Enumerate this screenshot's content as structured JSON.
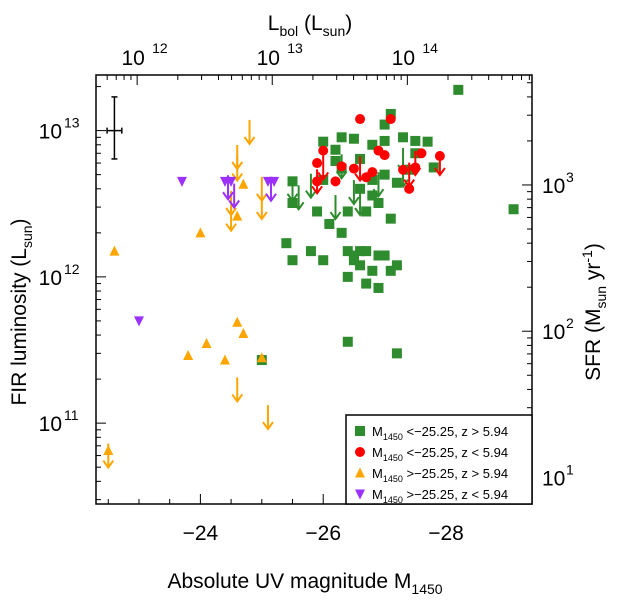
{
  "chart_data": {
    "type": "scatter",
    "xlabel": "Absolute UV magnitude M",
    "xlabel_sub": "1450",
    "ylabel": "FIR luminosity (L",
    "ylabel_sub": "sun",
    "ylabel_end": ")",
    "top_axis_label": "L",
    "top_axis_label_sub": "bol",
    "top_axis_label_mid": " (L",
    "top_axis_label_sub2": "sun",
    "top_axis_label_end": ")",
    "right_axis_label": "SFR (M",
    "right_axis_label_sub": "sun",
    "right_axis_label_mid": " yr",
    "right_axis_label_sup": "-1",
    "right_axis_label_end": ")",
    "xlim": [
      -22.3,
      -29.4
    ],
    "ylim": [
      28000000000.0,
      24000000000000.0
    ],
    "y_scale": "log",
    "x_ticks": [
      -24,
      -26,
      -28
    ],
    "x_tick_labels": [
      "−24",
      "−26",
      "−28"
    ],
    "y_ticks": [
      100000000000.0,
      1000000000000.0,
      10000000000000.0
    ],
    "y_tick_base": "10",
    "y_tick_exps": [
      "11",
      "12",
      "13"
    ],
    "top_ticks_lbol": [
      1000000000000.0,
      10000000000000.0,
      100000000000000.0
    ],
    "top_tick_base": "10",
    "top_tick_exps": [
      "12",
      "13",
      "14"
    ],
    "right_ticks_sfr": [
      10,
      100,
      1000
    ],
    "right_tick_base": "10",
    "right_tick_exps": [
      "1",
      "2",
      "3"
    ],
    "legend_placement": "bottom-right",
    "error_bar": {
      "x": -22.6,
      "y": 10000000000000.0,
      "x_err": 0.12,
      "y_low": 6400000000000.0,
      "y_high": 17000000000000.0
    },
    "series": [
      {
        "name": "M1450 <−25.25, z > 5.94",
        "label_pre": "M",
        "label_sub": "1450",
        "label_post": " <−25.25, z > 5.94",
        "marker": "square",
        "color": "#2e8b2e",
        "detections": [
          [
            -26.4,
            1500000000000.0
          ],
          [
            -25.9,
            2800000000000.0
          ],
          [
            -25.8,
            1500000000000.0
          ],
          [
            -26.0,
            1300000000000.0
          ],
          [
            -25.4,
            1700000000000.0
          ],
          [
            -25.5,
            1300000000000.0
          ],
          [
            -26.1,
            2300000000000.0
          ],
          [
            -26.3,
            2000000000000.0
          ],
          [
            -26.6,
            1500000000000.0
          ],
          [
            -26.5,
            1400000000000.0
          ],
          [
            -26.7,
            1500000000000.0
          ],
          [
            -26.8,
            1100000000000.0
          ],
          [
            -26.5,
            1300000000000.0
          ],
          [
            -26.9,
            1400000000000.0
          ],
          [
            -27.1,
            1100000000000.0
          ],
          [
            -26.6,
            1200000000000.0
          ],
          [
            -26.4,
            1000000000000.0
          ],
          [
            -26.7,
            900000000000.0
          ],
          [
            -26.9,
            840000000000.0
          ],
          [
            -27.0,
            1400000000000.0
          ],
          [
            -27.2,
            1200000000000.0
          ],
          [
            -27.1,
            2500000000000.0
          ],
          [
            -26.4,
            2800000000000.0
          ],
          [
            -26.6,
            4000000000000.0
          ],
          [
            -26.8,
            3600000000000.0
          ],
          [
            -26.9,
            3200000000000.0
          ],
          [
            -27.2,
            4400000000000.0
          ],
          [
            -27.4,
            5400000000000.0
          ],
          [
            -27.5,
            7000000000000.0
          ],
          [
            -26.8,
            4600000000000.0
          ],
          [
            -27.0,
            5000000000000.0
          ],
          [
            -26.6,
            6400000000000.0
          ],
          [
            -26.2,
            7400000000000.0
          ],
          [
            -26.0,
            8400000000000.0
          ],
          [
            -26.3,
            9000000000000.0
          ],
          [
            -26.5,
            8800000000000.0
          ],
          [
            -27.0,
            11000000000000.0
          ],
          [
            -27.1,
            13000000000000.0
          ],
          [
            -27.3,
            9000000000000.0
          ],
          [
            -27.5,
            8500000000000.0
          ],
          [
            -27.7,
            8400000000000.0
          ],
          [
            -27.8,
            5600000000000.0
          ],
          [
            -28.2,
            19000000000000.0
          ],
          [
            -27.0,
            8500000000000.0
          ],
          [
            -25.0,
            270000000000.0
          ],
          [
            -26.4,
            360000000000.0
          ],
          [
            -27.2,
            300000000000.0
          ],
          [
            -26.7,
            2800000000000.0
          ],
          [
            -29.1,
            2900000000000.0
          ],
          [
            -25.5,
            4500000000000.0
          ],
          [
            -26.0,
            4600000000000.0
          ],
          [
            -25.5,
            3200000000000.0
          ],
          [
            -26.2,
            6200000000000.0
          ],
          [
            -26.3,
            5500000000000.0
          ],
          [
            -26.8,
            8000000000000.0
          ]
        ],
        "upper_limits": [
          [
            -25.5,
            4000000000000.0
          ],
          [
            -25.6,
            3500000000000.0
          ],
          [
            -25.8,
            4200000000000.0
          ],
          [
            -26.2,
            3000000000000.0
          ],
          [
            -26.5,
            3800000000000.0
          ],
          [
            -26.6,
            3200000000000.0
          ],
          [
            -26.9,
            4300000000000.0
          ],
          [
            -27.3,
            6300000000000.0
          ],
          [
            -27.3,
            5000000000000.0
          ],
          [
            -26.3,
            5700000000000.0
          ]
        ]
      },
      {
        "name": "M1450 <−25.25, z < 5.94",
        "label_pre": "M",
        "label_sub": "1450",
        "label_post": " <−25.25, z < 5.94",
        "marker": "circle",
        "color": "#ff0000",
        "detections": [
          [
            -26.0,
            7300000000000.0
          ],
          [
            -26.3,
            5700000000000.0
          ],
          [
            -26.6,
            12000000000000.0
          ],
          [
            -26.9,
            7300000000000.0
          ],
          [
            -27.1,
            12000000000000.0
          ],
          [
            -25.9,
            6000000000000.0
          ],
          [
            -26.2,
            4500000000000.0
          ],
          [
            -26.5,
            5500000000000.0
          ],
          [
            -26.7,
            4800000000000.0
          ],
          [
            -27.0,
            6800000000000.0
          ],
          [
            -27.3,
            5400000000000.0
          ],
          [
            -27.5,
            5600000000000.0
          ],
          [
            -27.6,
            7000000000000.0
          ],
          [
            -26.8,
            5200000000000.0
          ],
          [
            -27.4,
            4000000000000.0
          ],
          [
            -27.9,
            6700000000000.0
          ],
          [
            -25.9,
            4500000000000.0
          ]
        ],
        "upper_limits": [
          [
            -25.9,
            4500000000000.0
          ],
          [
            -26.6,
            5500000000000.0
          ],
          [
            -27.4,
            5000000000000.0
          ],
          [
            -27.5,
            6000000000000.0
          ],
          [
            -27.9,
            6000000000000.0
          ],
          [
            -26.0,
            5600000000000.0
          ]
        ]
      },
      {
        "name": "M1450 >−25.25, z > 5.94",
        "label_pre": "M",
        "label_sub": "1450",
        "label_post": " >−25.25, z > 5.94",
        "marker": "triangle-up",
        "color": "#ffa500",
        "detections": [
          [
            -22.6,
            1500000000000.0
          ],
          [
            -24.0,
            2000000000000.0
          ],
          [
            -24.7,
            4300000000000.0
          ],
          [
            -23.8,
            290000000000.0
          ],
          [
            -24.1,
            350000000000.0
          ],
          [
            -24.4,
            270000000000.0
          ],
          [
            -24.6,
            490000000000.0
          ],
          [
            -24.7,
            410000000000.0
          ],
          [
            -25.0,
            280000000000.0
          ],
          [
            -22.5,
            65000000000.0
          ],
          [
            -24.6,
            2600000000000.0
          ]
        ],
        "upper_limits": [
          [
            -24.8,
            9800000000000.0
          ],
          [
            -24.6,
            6600000000000.0
          ],
          [
            -24.6,
            5500000000000.0
          ],
          [
            -24.5,
            3200000000000.0
          ],
          [
            -24.5,
            2500000000000.0
          ],
          [
            -25.0,
            4000000000000.0
          ],
          [
            -25.0,
            3000000000000.0
          ],
          [
            -24.6,
            170000000000.0
          ],
          [
            -25.1,
            110000000000.0
          ],
          [
            -22.5,
            60000000000.0
          ]
        ]
      },
      {
        "name": "M1450 >−25.25, z < 5.94",
        "label_pre": "M",
        "label_sub": "1450",
        "label_post": " >−25.25, z < 5.94",
        "marker": "triangle-down",
        "color": "#9b30ff",
        "detections": [
          [
            -23.0,
            500000000000.0
          ],
          [
            -23.7,
            4500000000000.0
          ],
          [
            -24.4,
            4500000000000.0
          ],
          [
            -24.5,
            4500000000000.0
          ],
          [
            -25.1,
            4500000000000.0
          ],
          [
            -25.2,
            4500000000000.0
          ]
        ],
        "upper_limits": [
          [
            -24.45,
            4100000000000.0
          ],
          [
            -24.55,
            3600000000000.0
          ],
          [
            -25.15,
            4000000000000.0
          ]
        ]
      }
    ]
  }
}
